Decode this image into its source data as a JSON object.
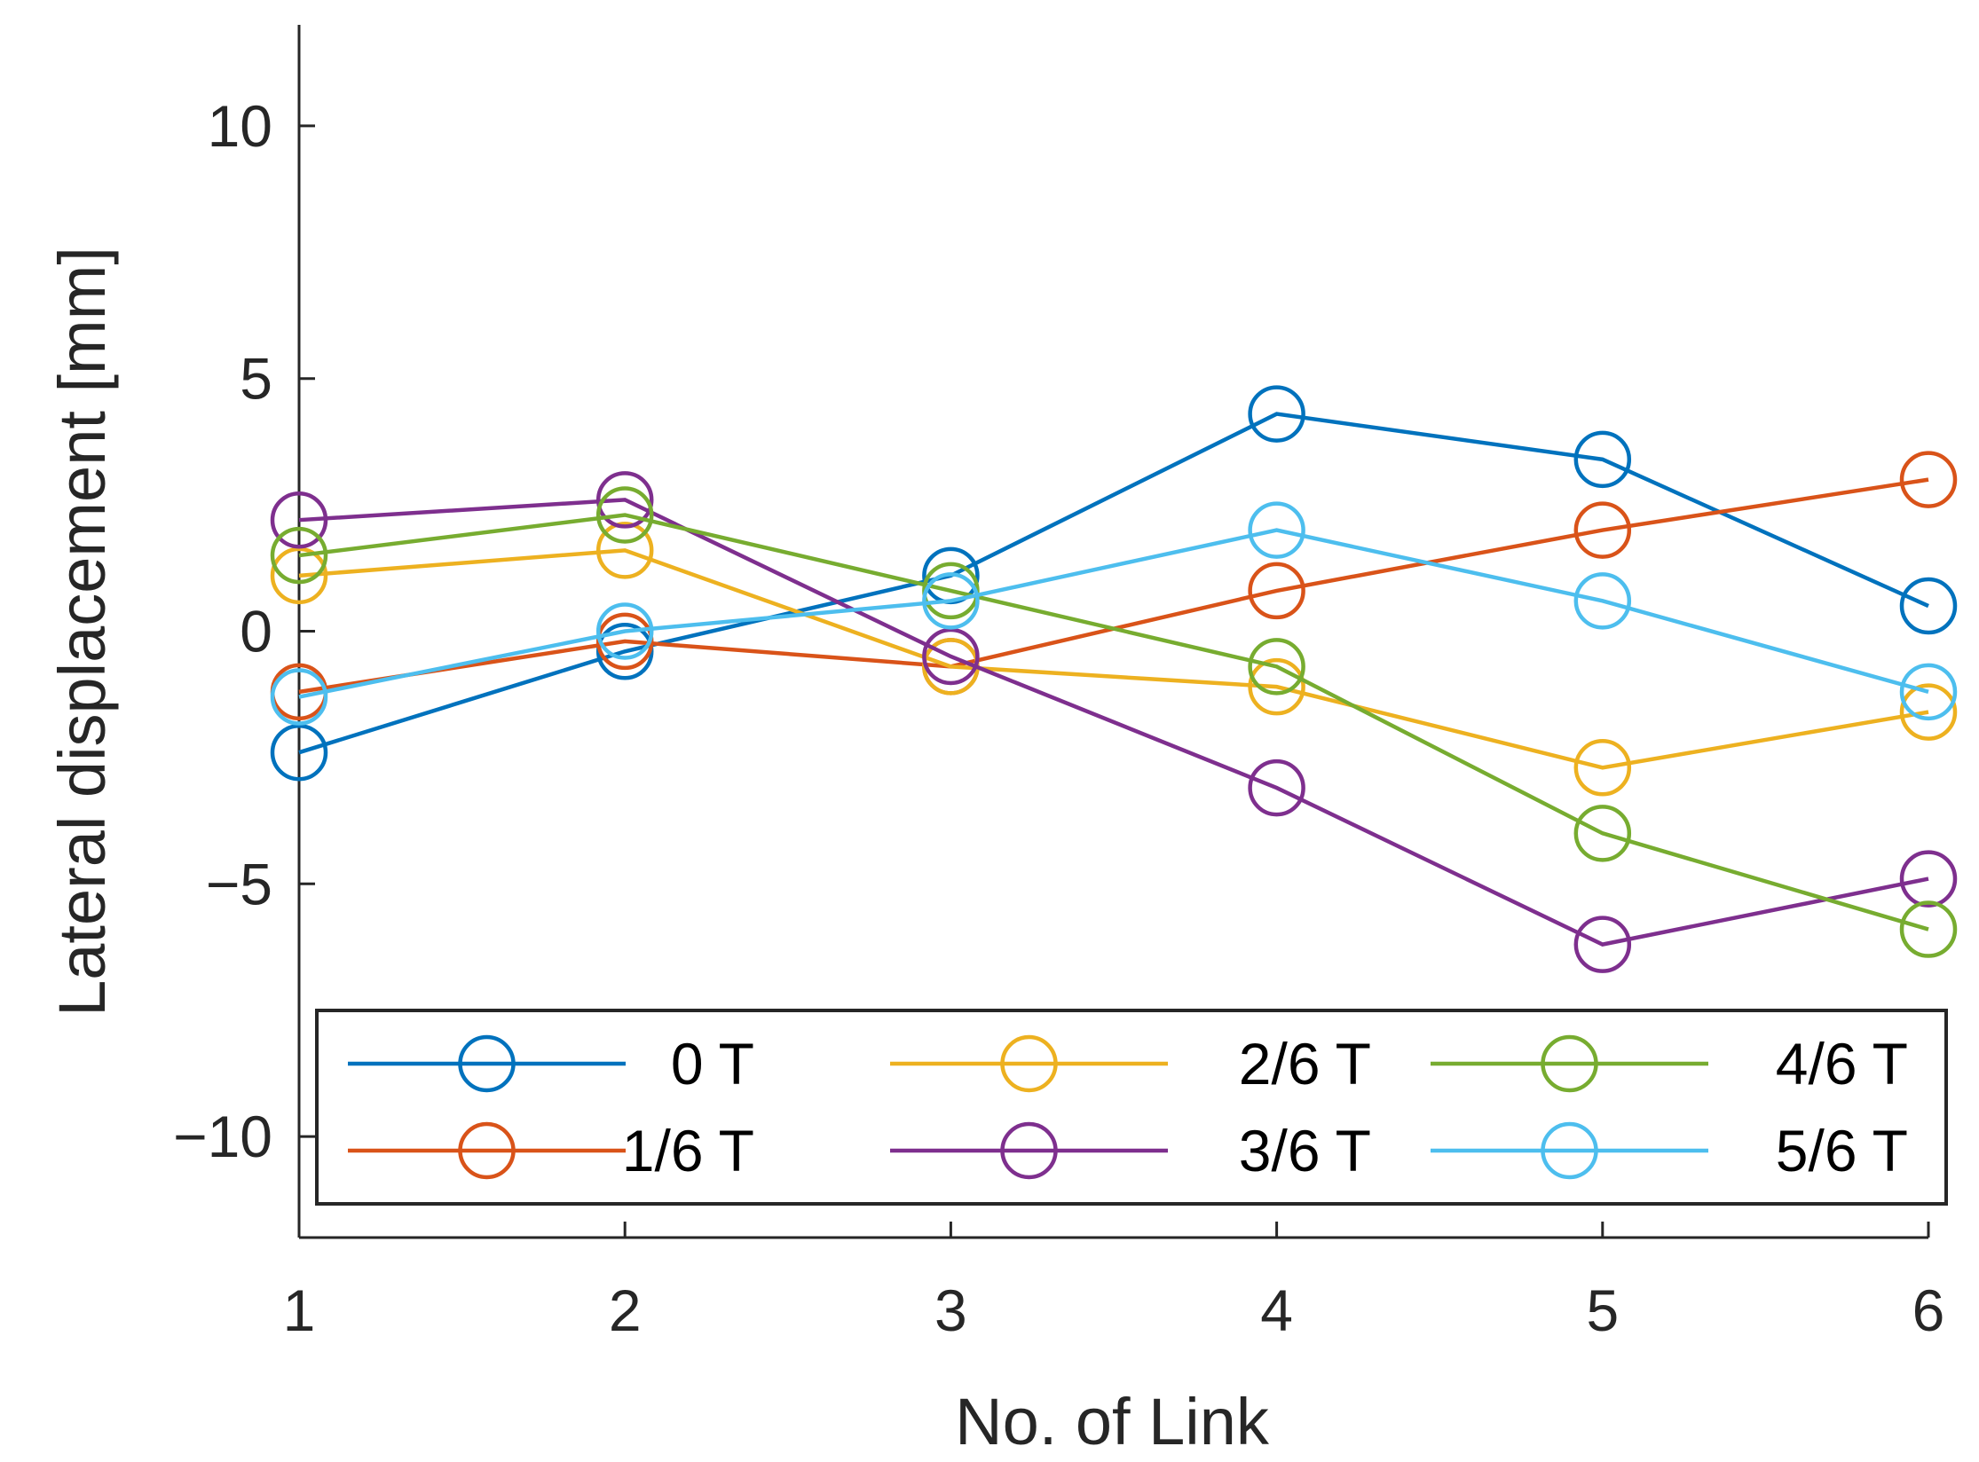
{
  "chart_data": {
    "type": "line",
    "title": "",
    "xlabel": "No. of Link",
    "ylabel": "Lateral displacement [mm]",
    "x": [
      1,
      2,
      3,
      4,
      5,
      6
    ],
    "xlim": [
      1,
      6
    ],
    "ylim": [
      -12,
      12
    ],
    "xticks": [
      "1",
      "2",
      "3",
      "4",
      "5",
      "6"
    ],
    "yticks": [
      {
        "value": 10,
        "label": "10"
      },
      {
        "value": 5,
        "label": "5"
      },
      {
        "value": 0,
        "label": "0"
      },
      {
        "value": -5,
        "label": "−5"
      },
      {
        "value": -10,
        "label": "−10"
      }
    ],
    "grid": false,
    "marker": "open-circle",
    "legend_position": "bottom",
    "series": [
      {
        "name": "0 T",
        "color": "#0072BD",
        "values": [
          -2.4,
          -0.4,
          1.1,
          4.3,
          3.4,
          0.5
        ]
      },
      {
        "name": "1/6 T",
        "color": "#D95319",
        "values": [
          -1.2,
          -0.2,
          -0.7,
          0.8,
          2.0,
          3.0
        ]
      },
      {
        "name": "2/6 T",
        "color": "#EDB120",
        "values": [
          1.1,
          1.6,
          -0.7,
          -1.1,
          -2.7,
          -1.6
        ]
      },
      {
        "name": "3/6 T",
        "color": "#7E2F8E",
        "values": [
          2.2,
          2.6,
          -0.5,
          -3.1,
          -6.2,
          -4.9
        ]
      },
      {
        "name": "4/6 T",
        "color": "#77AC30",
        "values": [
          1.5,
          2.3,
          0.8,
          -0.7,
          -4.0,
          -5.9
        ]
      },
      {
        "name": "5/6 T",
        "color": "#4DBEEE",
        "values": [
          -1.3,
          0.0,
          0.6,
          2.0,
          0.6,
          -1.2
        ]
      }
    ]
  }
}
